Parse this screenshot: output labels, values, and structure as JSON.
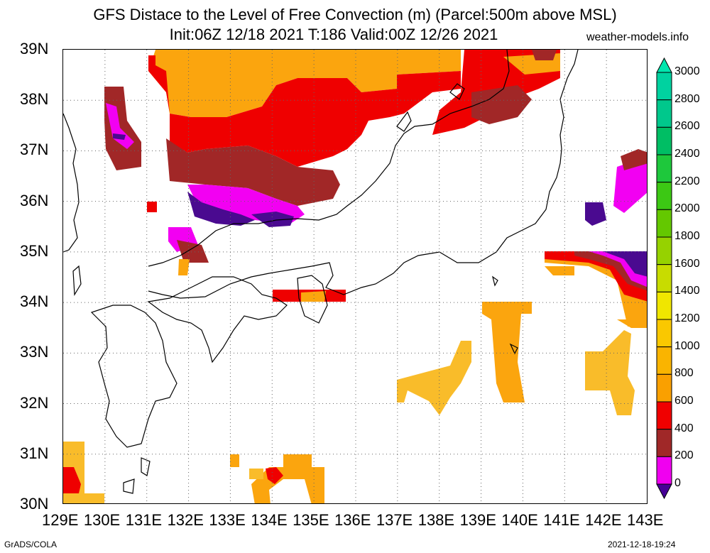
{
  "title": "GFS Distace to the Level of Free Convection (m) (Parcel:500m above MSL)",
  "subtitle": "Init:06Z 12/18 2021 T:186 Valid:00Z 12/26 2021",
  "site": "weather-models.info",
  "footer_left": "GrADS/COLA",
  "footer_right": "2021-12-18-19:24",
  "map": {
    "lon_labels": [
      "129E",
      "130E",
      "131E",
      "132E",
      "133E",
      "134E",
      "135E",
      "136E",
      "137E",
      "138E",
      "139E",
      "140E",
      "141E",
      "142E",
      "143E"
    ],
    "lat_labels": [
      "30N",
      "31N",
      "32N",
      "33N",
      "34N",
      "35N",
      "36N",
      "37N",
      "38N",
      "39N"
    ],
    "lon_range": [
      129,
      143
    ],
    "lat_range": [
      30,
      39
    ],
    "grid": true
  },
  "colorbar": {
    "labels": [
      "3000",
      "2800",
      "2600",
      "2400",
      "2200",
      "2000",
      "1800",
      "1600",
      "1400",
      "1200",
      "1000",
      "800",
      "600",
      "400",
      "200",
      "0"
    ],
    "colors": [
      "#00e6ae",
      "#00d2a0",
      "#00c88c",
      "#00be64",
      "#1ec83c",
      "#3cc814",
      "#64c800",
      "#96d200",
      "#c8dc00",
      "#f0e600",
      "#fac800",
      "#fab400",
      "#faa000",
      "#f00000",
      "#a02828",
      "#f000f0",
      "#460096"
    ]
  },
  "field_colors": {
    "orange": "#fba50e",
    "lightorange": "#f9bc2a",
    "red": "#ef0000",
    "brown": "#a12727",
    "magenta": "#f200f2",
    "purple": "#4a0a90"
  }
}
